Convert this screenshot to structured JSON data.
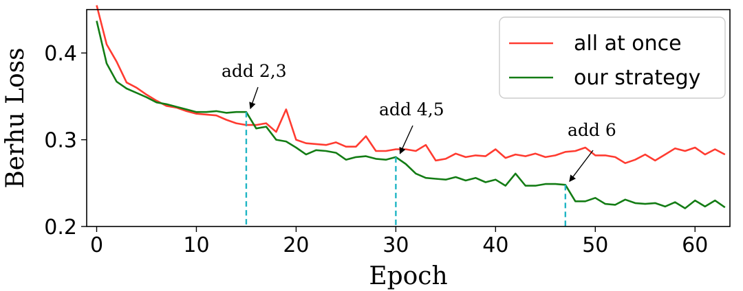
{
  "chart_data": {
    "type": "line",
    "title": "",
    "xlabel": "Epoch",
    "ylabel": "Berhu Loss",
    "xlim": [
      -1,
      63.5
    ],
    "ylim": [
      0.2,
      0.45
    ],
    "xticks": [
      0,
      10,
      20,
      30,
      40,
      50,
      60
    ],
    "yticks": [
      0.2,
      0.3,
      0.4
    ],
    "xtick_labels": [
      "0",
      "10",
      "20",
      "30",
      "40",
      "50",
      "60"
    ],
    "ytick_labels": [
      "0.2",
      "0.3",
      "0.4"
    ],
    "grid": false,
    "legend_position": "top-right",
    "series": [
      {
        "name": "all at once",
        "color": "#ff3b30",
        "x": [
          0,
          1,
          2,
          3,
          4,
          5,
          6,
          7,
          8,
          9,
          10,
          11,
          12,
          13,
          14,
          15,
          16,
          17,
          18,
          19,
          20,
          21,
          22,
          23,
          24,
          25,
          26,
          27,
          28,
          29,
          30,
          31,
          32,
          33,
          34,
          35,
          36,
          37,
          38,
          39,
          40,
          41,
          42,
          43,
          44,
          45,
          46,
          47,
          48,
          49,
          50,
          51,
          52,
          53,
          54,
          55,
          56,
          57,
          58,
          59,
          60,
          61,
          62,
          63
        ],
        "values": [
          0.455,
          0.41,
          0.39,
          0.366,
          0.36,
          0.352,
          0.345,
          0.339,
          0.337,
          0.333,
          0.33,
          0.329,
          0.328,
          0.323,
          0.319,
          0.317,
          0.317,
          0.319,
          0.309,
          0.335,
          0.3,
          0.296,
          0.295,
          0.294,
          0.297,
          0.292,
          0.292,
          0.304,
          0.287,
          0.287,
          0.289,
          0.289,
          0.287,
          0.294,
          0.276,
          0.278,
          0.284,
          0.28,
          0.282,
          0.281,
          0.289,
          0.279,
          0.283,
          0.281,
          0.284,
          0.28,
          0.282,
          0.286,
          0.287,
          0.291,
          0.282,
          0.282,
          0.28,
          0.273,
          0.277,
          0.283,
          0.276,
          0.283,
          0.29,
          0.287,
          0.291,
          0.283,
          0.289,
          0.283
        ]
      },
      {
        "name": "our strategy",
        "color": "#137c14",
        "x": [
          0,
          1,
          2,
          3,
          4,
          5,
          6,
          7,
          8,
          9,
          10,
          11,
          12,
          13,
          14,
          15,
          16,
          17,
          18,
          19,
          20,
          21,
          22,
          23,
          24,
          25,
          26,
          27,
          28,
          29,
          30,
          31,
          32,
          33,
          34,
          35,
          36,
          37,
          38,
          39,
          40,
          41,
          42,
          43,
          44,
          45,
          46,
          47,
          48,
          49,
          50,
          51,
          52,
          53,
          54,
          55,
          56,
          57,
          58,
          59,
          60,
          61,
          62,
          63
        ],
        "values": [
          0.437,
          0.388,
          0.367,
          0.359,
          0.354,
          0.349,
          0.343,
          0.341,
          0.338,
          0.335,
          0.332,
          0.332,
          0.333,
          0.331,
          0.332,
          0.332,
          0.313,
          0.315,
          0.3,
          0.298,
          0.291,
          0.283,
          0.288,
          0.287,
          0.285,
          0.277,
          0.28,
          0.281,
          0.278,
          0.277,
          0.28,
          0.272,
          0.261,
          0.256,
          0.255,
          0.254,
          0.257,
          0.253,
          0.256,
          0.251,
          0.254,
          0.247,
          0.261,
          0.247,
          0.247,
          0.249,
          0.249,
          0.248,
          0.229,
          0.229,
          0.233,
          0.226,
          0.225,
          0.231,
          0.227,
          0.226,
          0.227,
          0.223,
          0.228,
          0.221,
          0.23,
          0.223,
          0.23,
          0.222
        ]
      }
    ],
    "markers": [
      {
        "x": 15,
        "y": 0.332,
        "label": "add 2,3",
        "color": "#1fb5c4"
      },
      {
        "x": 30,
        "y": 0.28,
        "label": "add 4,5",
        "color": "#1fb5c4"
      },
      {
        "x": 47,
        "y": 0.248,
        "label": "add 6",
        "color": "#1fb5c4"
      }
    ]
  }
}
